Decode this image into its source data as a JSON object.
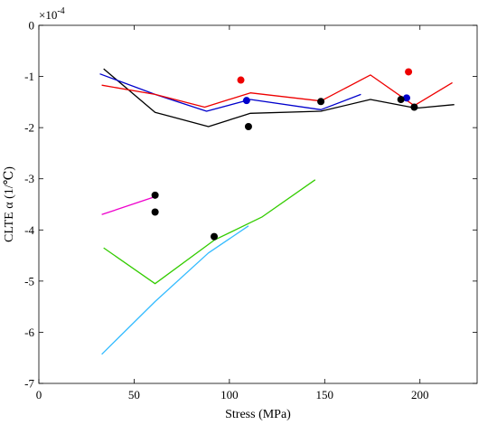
{
  "chart_data": {
    "type": "line",
    "xlabel": "Stress (MPa)",
    "ylabel": "CLTE α (1/℃)",
    "exponent_label": "×10",
    "exponent_power": "-4",
    "xlim": [
      0,
      230
    ],
    "ylim": [
      -7,
      0
    ],
    "xticks": [
      0,
      50,
      100,
      150,
      200
    ],
    "yticks": [
      0,
      -1,
      -2,
      -3,
      -4,
      -5,
      -6,
      -7
    ],
    "grid": false,
    "legend": "none",
    "series": [
      {
        "color": "#000000",
        "x": [
          34,
          61,
          89,
          111,
          148,
          174,
          198,
          218
        ],
        "y": [
          -0.85,
          -1.7,
          -1.98,
          -1.72,
          -1.68,
          -1.45,
          -1.62,
          -1.55
        ]
      },
      {
        "color": "#0000cc",
        "x": [
          32,
          61,
          88,
          111,
          148,
          169
        ],
        "y": [
          -0.95,
          -1.35,
          -1.68,
          -1.45,
          -1.65,
          -1.35
        ]
      },
      {
        "color": "#ee0000",
        "x": [
          33,
          61,
          87,
          111,
          148,
          174,
          197,
          217
        ],
        "y": [
          -1.17,
          -1.35,
          -1.6,
          -1.32,
          -1.48,
          -0.97,
          -1.57,
          -1.12
        ]
      },
      {
        "color": "#ee00cc",
        "x": [
          33,
          61
        ],
        "y": [
          -3.7,
          -3.35
        ]
      },
      {
        "color": "#33cc00",
        "x": [
          34,
          61,
          92,
          117,
          145
        ],
        "y": [
          -4.35,
          -5.05,
          -4.2,
          -3.75,
          -3.02
        ]
      },
      {
        "color": "#33bbff",
        "x": [
          33,
          61,
          89,
          110
        ],
        "y": [
          -6.43,
          -5.4,
          -4.45,
          -3.92
        ]
      }
    ],
    "points": [
      {
        "color": "#ee0000",
        "x": [
          106,
          194
        ],
        "y": [
          -1.07,
          -0.91
        ]
      },
      {
        "color": "#0000cc",
        "x": [
          109,
          193
        ],
        "y": [
          -1.47,
          -1.42
        ]
      },
      {
        "color": "#000000",
        "x": [
          110,
          148,
          190,
          197,
          61,
          61,
          92
        ],
        "y": [
          -1.98,
          -1.49,
          -1.45,
          -1.6,
          -3.32,
          -3.65,
          -4.13
        ]
      }
    ]
  }
}
